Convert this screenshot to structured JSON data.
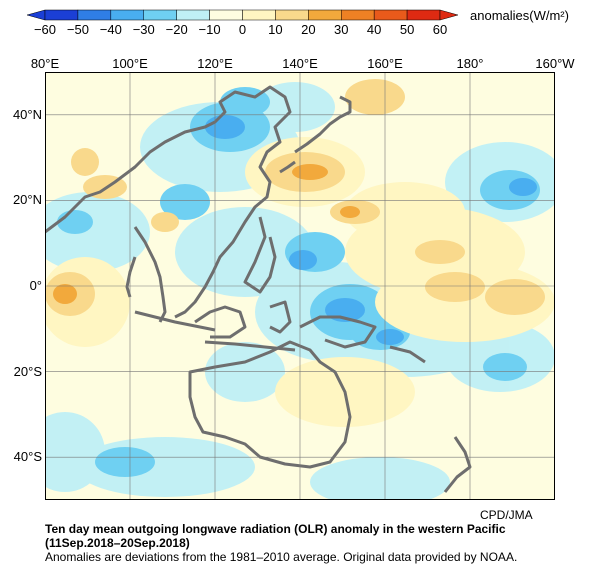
{
  "colorbar": {
    "units": "anomalies(W/m²)",
    "ticks": [
      "−60",
      "−50",
      "−40",
      "−30",
      "−20",
      "−10",
      "0",
      "10",
      "20",
      "30",
      "40",
      "50",
      "60"
    ],
    "colors": [
      "#1b3fd6",
      "#2f7ee6",
      "#49aef0",
      "#6fd0f2",
      "#bff0f6",
      "#fefde0",
      "#fff6c2",
      "#f9d98c",
      "#f2a93c",
      "#ee8124",
      "#e95a1b",
      "#de2a12"
    ]
  },
  "longitudes": [
    "80°E",
    "100°E",
    "120°E",
    "140°E",
    "160°E",
    "180°",
    "160°W"
  ],
  "latitudes": [
    "40°N",
    "20°N",
    "0°",
    "20°S",
    "40°S"
  ],
  "map": {
    "lon_range": [
      80,
      200
    ],
    "lat_range": [
      -50,
      50
    ],
    "grid_interval": 20,
    "coast_color": "#6e6e6e",
    "background_color": "#fefde0"
  },
  "credit": "CPD/JMA",
  "title": "Ten day mean outgoing longwave radiation (OLR) anomaly in the western Pacific",
  "period": "(11Sep.2018–20Sep.2018)",
  "note": "Anomalies are deviations from the 1981–2010 average. Original data provided by NOAA."
}
